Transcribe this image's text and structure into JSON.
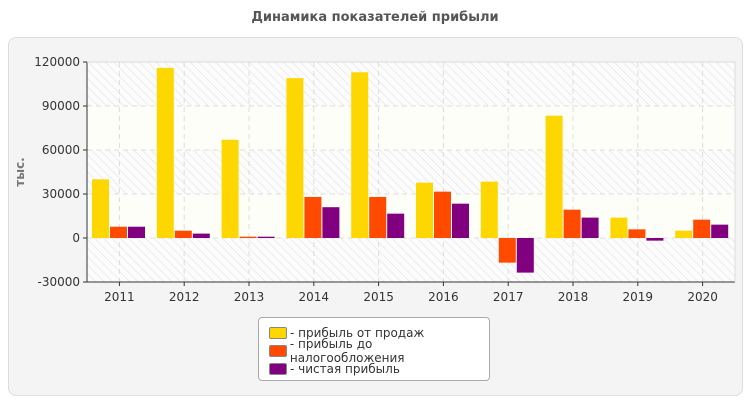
{
  "chart_data": {
    "type": "bar",
    "title": "Динамика показателей прибыли",
    "ylabel": "тыс.",
    "xlabel": "",
    "ylim": [
      -30000,
      120000
    ],
    "yticks": [
      -30000,
      0,
      30000,
      60000,
      90000,
      120000
    ],
    "grid": true,
    "legend_position": "bottom",
    "categories": [
      "2011",
      "2012",
      "2013",
      "2014",
      "2015",
      "2016",
      "2017",
      "2018",
      "2019",
      "2020"
    ],
    "series": [
      {
        "name": "- прибыль от продаж",
        "color": "#FFD700",
        "values": [
          40000,
          116000,
          67000,
          109000,
          113000,
          37700,
          38400,
          83400,
          13900,
          5000
        ]
      },
      {
        "name": "- прибыль до налогообложения",
        "color": "#FF4A00",
        "values": [
          7700,
          5000,
          900,
          28000,
          28000,
          31600,
          -16800,
          19300,
          5900,
          12500
        ]
      },
      {
        "name": "- чистая прибыль",
        "color": "#800080",
        "values": [
          7700,
          3000,
          900,
          21000,
          16600,
          23400,
          -23600,
          13900,
          -1800,
          9100
        ]
      }
    ]
  }
}
